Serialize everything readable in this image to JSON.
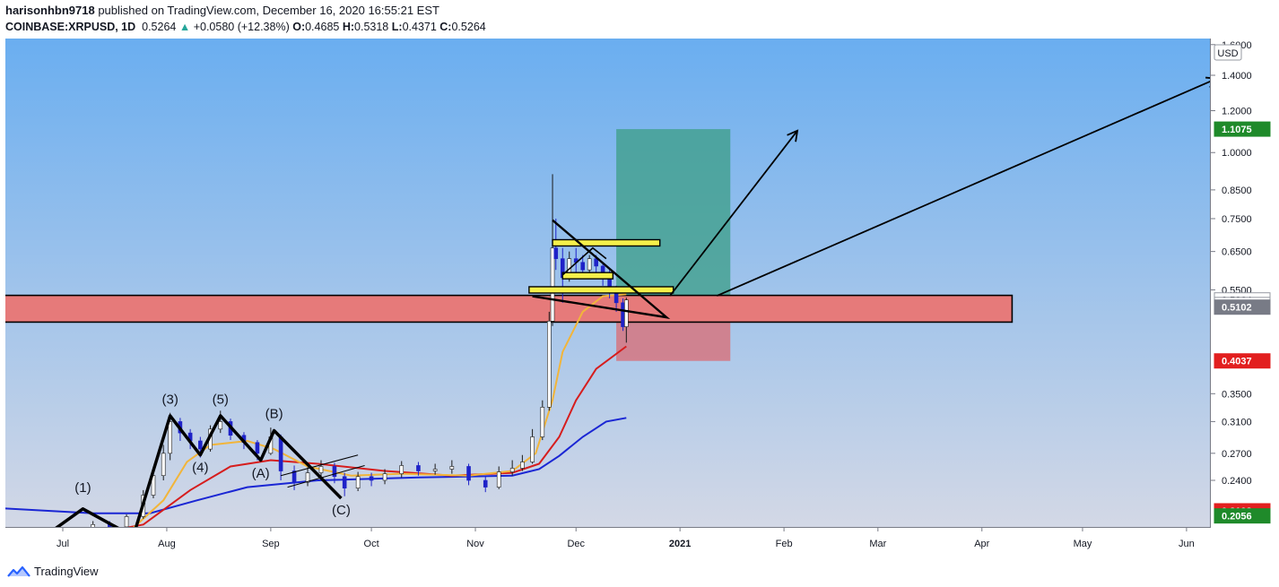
{
  "header": {
    "author": "harisonhbn9718",
    "published_text": "published on TradingView.com, December 16, 2020 16:55:21 EST",
    "symbol": "COINBASE:XRPUSD, 1D",
    "last": "0.5264",
    "change_arrow": "▲",
    "change": "+0.0580 (+12.38%)",
    "o_label": "O:",
    "o": "0.4685",
    "h_label": "H:",
    "h": "0.5318",
    "l_label": "L:",
    "l": "0.4371",
    "c_label": "C:",
    "c": "0.5264"
  },
  "footer": {
    "brand": "TradingView",
    "logo_icon": "tradingview-logo-icon"
  },
  "colors": {
    "bg_top": "#6aaef0",
    "bg_bottom": "#d3d8e6",
    "bull": "#ffffff",
    "bear": "#1e22c8",
    "ema_fast": "#f2b53a",
    "ema_mid": "#d61d1d",
    "ema_slow": "#1a26d4",
    "resistance_zone": "#e67a7a",
    "level_line": "#f5f04a",
    "target_zone": "#3f9f8a",
    "stop_zone": "#d7737d",
    "tag_green": "#1f8a2a",
    "tag_red": "#e21f1f",
    "tag_gray": "#787b86"
  },
  "chart_data": {
    "type": "candlestick",
    "scale": "log",
    "currency": "USD",
    "y_ticks": [
      "1.6000",
      "1.4000",
      "1.2000",
      "1.0000",
      "0.8500",
      "0.7500",
      "0.6500",
      "0.5500",
      "0.3500",
      "0.3100",
      "0.2700",
      "0.2400"
    ],
    "x_ticks": [
      "Jul",
      "Aug",
      "Sep",
      "Oct",
      "Nov",
      "Dec",
      "2021",
      "Feb",
      "Mar",
      "Apr",
      "May",
      "Jun"
    ],
    "price_tags": [
      {
        "label": "1.1075",
        "value": 1.1075,
        "style": "green"
      },
      {
        "label": "0.5264",
        "value": 0.5264,
        "style": "white"
      },
      {
        "label": "02:04:40",
        "value": 0.516,
        "style": "white"
      },
      {
        "label": "0.5102",
        "value": 0.5102,
        "style": "gray"
      },
      {
        "label": "0.4037",
        "value": 0.4037,
        "style": "red"
      },
      {
        "label": "0.2102",
        "value": 0.2102,
        "style": "red"
      },
      {
        "label": "0.2056",
        "value": 0.2056,
        "style": "green"
      }
    ],
    "wave_labels": [
      "(1)",
      "(3)",
      "(4)",
      "(5)",
      "(A)",
      "(B)",
      "(C)"
    ],
    "resistance_zone": {
      "from": "2020-05-18",
      "to": "2021-04-10",
      "low": 0.478,
      "high": 0.537
    },
    "horizontal_levels": [
      {
        "from": "2020-11-24",
        "to": "2020-12-26",
        "value": 0.675
      },
      {
        "from": "2020-11-27",
        "to": "2020-12-12",
        "value": 0.585
      },
      {
        "from": "2020-11-17",
        "to": "2020-12-30",
        "value": 0.55
      }
    ],
    "long_position": {
      "from": "2020-12-13",
      "to": "2021-01-16",
      "entry": 0.5264,
      "target": 1.1075,
      "stop": 0.4037
    },
    "projections": [
      {
        "from_date": "2020-12-29",
        "from_value": 0.536,
        "to_date": "2021-02-05",
        "to_value": 1.1
      },
      {
        "from_date": "2021-01-12",
        "from_value": 0.536,
        "to_date": "2021-06-10",
        "to_value": 1.38
      }
    ],
    "series_ema_fast": [
      [
        "2020-07-20",
        0.19
      ],
      [
        "2020-07-31",
        0.22
      ],
      [
        "2020-08-07",
        0.26
      ],
      [
        "2020-08-14",
        0.28
      ],
      [
        "2020-08-25",
        0.285
      ],
      [
        "2020-09-02",
        0.275
      ],
      [
        "2020-09-12",
        0.255
      ],
      [
        "2020-09-25",
        0.245
      ],
      [
        "2020-10-10",
        0.247
      ],
      [
        "2020-10-30",
        0.245
      ],
      [
        "2020-11-12",
        0.25
      ],
      [
        "2020-11-19",
        0.27
      ],
      [
        "2020-11-24",
        0.34
      ],
      [
        "2020-11-27",
        0.42
      ],
      [
        "2020-12-03",
        0.5
      ],
      [
        "2020-12-09",
        0.535
      ],
      [
        "2020-12-16",
        0.54
      ]
    ],
    "series_ema_mid": [
      [
        "2020-05-18",
        0.205
      ],
      [
        "2020-06-10",
        0.195
      ],
      [
        "2020-07-10",
        0.19
      ],
      [
        "2020-07-25",
        0.198
      ],
      [
        "2020-08-08",
        0.23
      ],
      [
        "2020-08-20",
        0.255
      ],
      [
        "2020-09-01",
        0.262
      ],
      [
        "2020-09-15",
        0.258
      ],
      [
        "2020-10-05",
        0.25
      ],
      [
        "2020-10-25",
        0.245
      ],
      [
        "2020-11-12",
        0.248
      ],
      [
        "2020-11-20",
        0.258
      ],
      [
        "2020-11-26",
        0.29
      ],
      [
        "2020-12-01",
        0.34
      ],
      [
        "2020-12-07",
        0.39
      ],
      [
        "2020-12-16",
        0.43
      ]
    ],
    "series_ema_slow": [
      [
        "2020-05-18",
        0.22
      ],
      [
        "2020-06-10",
        0.213
      ],
      [
        "2020-07-10",
        0.208
      ],
      [
        "2020-07-27",
        0.208
      ],
      [
        "2020-08-10",
        0.22
      ],
      [
        "2020-08-25",
        0.233
      ],
      [
        "2020-09-15",
        0.24
      ],
      [
        "2020-10-15",
        0.243
      ],
      [
        "2020-11-12",
        0.245
      ],
      [
        "2020-11-20",
        0.252
      ],
      [
        "2020-11-26",
        0.267
      ],
      [
        "2020-12-03",
        0.29
      ],
      [
        "2020-12-10",
        0.31
      ],
      [
        "2020-12-16",
        0.315
      ]
    ],
    "wave_path": [
      [
        "2020-06-24",
        0.185
      ],
      [
        "2020-07-07",
        0.212
      ],
      [
        "2020-07-22",
        0.188
      ],
      [
        "2020-08-02",
        0.318
      ],
      [
        "2020-08-11",
        0.268
      ],
      [
        "2020-08-17",
        0.318
      ],
      [
        "2020-08-29",
        0.262
      ],
      [
        "2020-09-02",
        0.298
      ],
      [
        "2020-09-22",
        0.222
      ]
    ],
    "candles": [
      [
        "2020-07-05",
        0.187,
        0.191,
        0.184,
        0.194
      ],
      [
        "2020-07-10",
        0.191,
        0.198,
        0.188,
        0.201
      ],
      [
        "2020-07-15",
        0.198,
        0.196,
        0.193,
        0.201
      ],
      [
        "2020-07-20",
        0.196,
        0.205,
        0.194,
        0.207
      ],
      [
        "2020-07-25",
        0.205,
        0.225,
        0.203,
        0.23
      ],
      [
        "2020-07-28",
        0.225,
        0.245,
        0.222,
        0.252
      ],
      [
        "2020-07-31",
        0.245,
        0.27,
        0.24,
        0.28
      ],
      [
        "2020-08-02",
        0.27,
        0.31,
        0.262,
        0.322
      ],
      [
        "2020-08-05",
        0.31,
        0.295,
        0.285,
        0.315
      ],
      [
        "2020-08-08",
        0.295,
        0.285,
        0.275,
        0.3
      ],
      [
        "2020-08-11",
        0.285,
        0.275,
        0.265,
        0.29
      ],
      [
        "2020-08-14",
        0.275,
        0.3,
        0.272,
        0.305
      ],
      [
        "2020-08-17",
        0.3,
        0.31,
        0.295,
        0.325
      ],
      [
        "2020-08-20",
        0.31,
        0.292,
        0.286,
        0.314
      ],
      [
        "2020-08-24",
        0.292,
        0.283,
        0.275,
        0.296
      ],
      [
        "2020-08-28",
        0.283,
        0.27,
        0.262,
        0.286
      ],
      [
        "2020-09-01",
        0.27,
        0.29,
        0.268,
        0.302
      ],
      [
        "2020-09-04",
        0.29,
        0.25,
        0.24,
        0.293
      ],
      [
        "2020-09-08",
        0.25,
        0.238,
        0.23,
        0.256
      ],
      [
        "2020-09-12",
        0.238,
        0.248,
        0.234,
        0.254
      ],
      [
        "2020-09-16",
        0.248,
        0.255,
        0.243,
        0.262
      ],
      [
        "2020-09-20",
        0.255,
        0.244,
        0.237,
        0.259
      ],
      [
        "2020-09-23",
        0.244,
        0.232,
        0.224,
        0.248
      ],
      [
        "2020-09-27",
        0.232,
        0.244,
        0.229,
        0.249
      ],
      [
        "2020-10-01",
        0.244,
        0.24,
        0.234,
        0.248
      ],
      [
        "2020-10-05",
        0.24,
        0.247,
        0.236,
        0.252
      ],
      [
        "2020-10-10",
        0.247,
        0.256,
        0.243,
        0.261
      ],
      [
        "2020-10-15",
        0.256,
        0.25,
        0.245,
        0.26
      ],
      [
        "2020-10-20",
        0.25,
        0.252,
        0.246,
        0.258
      ],
      [
        "2020-10-25",
        0.252,
        0.255,
        0.247,
        0.262
      ],
      [
        "2020-10-30",
        0.255,
        0.24,
        0.235,
        0.258
      ],
      [
        "2020-11-04",
        0.24,
        0.233,
        0.228,
        0.244
      ],
      [
        "2020-11-08",
        0.233,
        0.249,
        0.231,
        0.255
      ],
      [
        "2020-11-12",
        0.249,
        0.253,
        0.245,
        0.262
      ],
      [
        "2020-11-15",
        0.253,
        0.26,
        0.25,
        0.268
      ],
      [
        "2020-11-18",
        0.26,
        0.29,
        0.258,
        0.3
      ],
      [
        "2020-11-21",
        0.29,
        0.33,
        0.286,
        0.34
      ],
      [
        "2020-11-23",
        0.33,
        0.48,
        0.325,
        0.5
      ],
      [
        "2020-11-24",
        0.48,
        0.66,
        0.47,
        0.91
      ],
      [
        "2020-11-25",
        0.66,
        0.63,
        0.6,
        0.75
      ],
      [
        "2020-11-27",
        0.63,
        0.58,
        0.52,
        0.66
      ],
      [
        "2020-11-29",
        0.58,
        0.63,
        0.57,
        0.65
      ],
      [
        "2020-12-01",
        0.63,
        0.62,
        0.59,
        0.66
      ],
      [
        "2020-12-03",
        0.62,
        0.6,
        0.58,
        0.64
      ],
      [
        "2020-12-05",
        0.6,
        0.63,
        0.59,
        0.64
      ],
      [
        "2020-12-07",
        0.63,
        0.61,
        0.59,
        0.64
      ],
      [
        "2020-12-09",
        0.61,
        0.58,
        0.56,
        0.62
      ],
      [
        "2020-12-11",
        0.58,
        0.55,
        0.53,
        0.6
      ],
      [
        "2020-12-13",
        0.55,
        0.52,
        0.5,
        0.56
      ],
      [
        "2020-12-15",
        0.52,
        0.4685,
        0.46,
        0.53
      ],
      [
        "2020-12-16",
        0.4685,
        0.5264,
        0.4371,
        0.5318
      ]
    ]
  }
}
